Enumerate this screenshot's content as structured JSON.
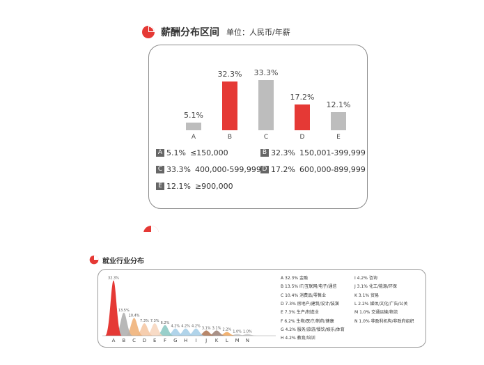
{
  "salary": {
    "title": "薪酬分布区间",
    "unit": "单位：人民币/年薪",
    "colors": {
      "red": "#e53935",
      "gray": "#bdbdbd",
      "box": "#666666"
    },
    "chart_data": {
      "type": "bar",
      "categories": [
        "A",
        "B",
        "C",
        "D",
        "E"
      ],
      "values": [
        5.1,
        32.3,
        33.3,
        17.2,
        12.1
      ],
      "value_labels": [
        "5.1%",
        "32.3%",
        "33.3%",
        "17.2%",
        "12.1%"
      ],
      "bar_colors": [
        "#bdbdbd",
        "#e53935",
        "#bdbdbd",
        "#e53935",
        "#bdbdbd"
      ],
      "ylim": [
        0,
        35
      ],
      "legend": [
        {
          "letter": "A",
          "pct": "5.1%",
          "range": "≤150,000"
        },
        {
          "letter": "B",
          "pct": "32.3%",
          "range": "150,001-399,999"
        },
        {
          "letter": "C",
          "pct": "33.3%",
          "range": "400,000-599,999"
        },
        {
          "letter": "D",
          "pct": "17.2%",
          "range": "600,000-899,999"
        },
        {
          "letter": "E",
          "pct": "12.1%",
          "range": "≥900,000"
        }
      ]
    }
  },
  "industry": {
    "title": "就业行业分布",
    "chart_data": {
      "type": "area",
      "categories": [
        "A",
        "B",
        "C",
        "D",
        "E",
        "F",
        "G",
        "H",
        "I",
        "J",
        "K",
        "L",
        "M",
        "N"
      ],
      "values": [
        32.3,
        13.5,
        10.4,
        7.3,
        7.3,
        6.2,
        4.2,
        4.2,
        4.2,
        3.1,
        3.1,
        2.2,
        1.0,
        1.0
      ],
      "value_labels": [
        "32.3%",
        "13.5%",
        "10.4%",
        "7.3%",
        "7.3%",
        "6.2%",
        "4.2%",
        "4.2%",
        "4.2%",
        "3.1%",
        "3.1%",
        "2.2%",
        "1.0%",
        "1.0%"
      ],
      "peak_colors": [
        "#e53935",
        "#b0b0b0",
        "#f0b27a",
        "#f5c9a6",
        "#f7d7c0",
        "#8ecac4",
        "#a8cfe8",
        "#a8cfe8",
        "#a8cfe8",
        "#b07a5a",
        "#a0857a",
        "#f0a860",
        "#c8c8c8",
        "#c8c8c8"
      ],
      "ylim": [
        0,
        35
      ],
      "legend": [
        {
          "letter": "A",
          "text": "32.3% 金融"
        },
        {
          "letter": "B",
          "text": "13.5% IT/互联网/电子/通信"
        },
        {
          "letter": "C",
          "text": "10.4% 消费品/零售业"
        },
        {
          "letter": "D",
          "text": "7.3% 房地产/建筑/设计/装潢"
        },
        {
          "letter": "E",
          "text": "7.3% 生产/制造业"
        },
        {
          "letter": "F",
          "text": "6.2% 生物/医疗/制药/健康"
        },
        {
          "letter": "G",
          "text": "4.2% 服务/旅游/餐饮/娱乐/体育"
        },
        {
          "letter": "H",
          "text": "4.2% 教育/培训"
        },
        {
          "letter": "I",
          "text": "4.2% 咨询"
        },
        {
          "letter": "J",
          "text": "3.1% 化工/能源/环保"
        },
        {
          "letter": "K",
          "text": "3.1% 贸易"
        },
        {
          "letter": "L",
          "text": "2.2% 媒体/文化/广告/公关"
        },
        {
          "letter": "M",
          "text": "1.0% 交通运输/物流"
        },
        {
          "letter": "N",
          "text": "1.0% 非盈利机构/非政府组织"
        }
      ]
    }
  }
}
